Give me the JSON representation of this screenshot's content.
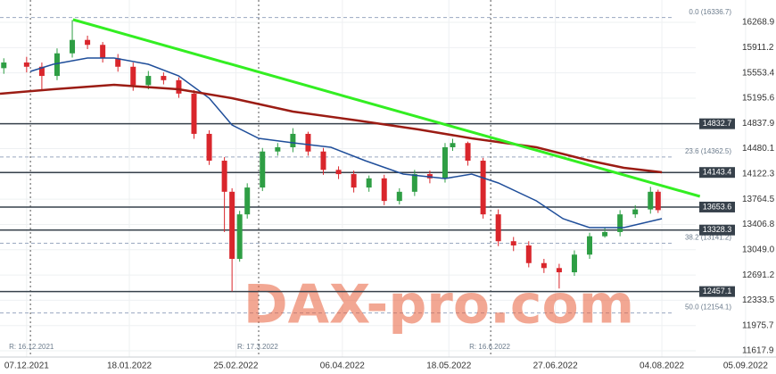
{
  "chart_data": {
    "type": "candlestick",
    "watermark": "DAX-pro.com",
    "xlim": [
      -7,
      197
    ],
    "ylim": [
      11530,
      16585
    ],
    "xticks": [
      {
        "value": 0,
        "label": "07.12.2021"
      },
      {
        "value": 27,
        "label": "18.01.2022"
      },
      {
        "value": 55,
        "label": "25.02.2022"
      },
      {
        "value": 83,
        "label": "06.04.2022"
      },
      {
        "value": 111,
        "label": "18.05.2022"
      },
      {
        "value": 139,
        "label": "27.06.2022"
      },
      {
        "value": 167,
        "label": "04.08.2022"
      },
      {
        "value": 189,
        "label": "05.09.2022"
      }
    ],
    "yticks": [
      16268.9,
      15911.2,
      15553.4,
      15195.6,
      14837.9,
      14480.1,
      14122.3,
      13764.5,
      13406.8,
      {
        "value": 13049,
        "label": "13049.0"
      },
      12691.2,
      12333.5,
      11975.7,
      11617.9
    ],
    "grid": true,
    "up_color": "#2e9e44",
    "down_color": "#d9262c",
    "candles": {
      "x": [
        -6,
        0,
        4,
        8,
        12,
        16,
        20,
        24,
        28,
        32,
        36,
        40,
        44,
        48,
        52,
        54,
        56,
        58,
        62,
        66,
        70,
        74,
        78,
        82,
        86,
        90,
        94,
        98,
        102,
        106,
        110,
        112,
        116,
        120,
        124,
        128,
        132,
        136,
        140,
        144,
        148,
        152,
        156,
        160,
        164,
        166
      ],
      "open": [
        15620,
        15700,
        15640,
        15510,
        15830,
        16020,
        15950,
        15760,
        15640,
        15380,
        15510,
        15450,
        15260,
        14690,
        14310,
        13870,
        12920,
        13550,
        13930,
        14440,
        14500,
        14690,
        14440,
        14180,
        14120,
        13930,
        14060,
        13740,
        13870,
        14120,
        14060,
        14500,
        14560,
        14310,
        13550,
        13170,
        13110,
        12860,
        12790,
        12730,
        12980,
        13240,
        13300,
        13550,
        13620,
        13870
      ],
      "high": [
        15760,
        15780,
        15700,
        15900,
        16300,
        16080,
        15990,
        15820,
        15700,
        15580,
        15560,
        15490,
        15310,
        14740,
        14360,
        13920,
        13600,
        13990,
        14490,
        14560,
        14770,
        14720,
        14490,
        14230,
        14170,
        14100,
        14110,
        13920,
        14180,
        14170,
        14560,
        14620,
        14580,
        14350,
        13620,
        13230,
        13170,
        12920,
        12850,
        13040,
        13290,
        13360,
        13610,
        13680,
        13940,
        13900
      ],
      "low": [
        15540,
        15560,
        15320,
        15450,
        15770,
        15890,
        15700,
        15570,
        15300,
        15320,
        15390,
        15200,
        14620,
        14250,
        13300,
        12460,
        12880,
        13490,
        13880,
        14380,
        14430,
        14380,
        14110,
        14050,
        13860,
        13870,
        13680,
        13690,
        13810,
        13990,
        14000,
        14450,
        14240,
        13490,
        13100,
        13030,
        12800,
        12720,
        12500,
        12680,
        12920,
        13220,
        13240,
        13500,
        13560,
        13570
      ],
      "close": [
        15700,
        15640,
        15510,
        15830,
        16020,
        15950,
        15760,
        15640,
        15380,
        15510,
        15450,
        15260,
        14690,
        14310,
        13870,
        12920,
        13550,
        13930,
        14440,
        14500,
        14690,
        14440,
        14180,
        14120,
        13930,
        14060,
        13740,
        13870,
        14120,
        14060,
        14500,
        14560,
        14310,
        13550,
        13170,
        13110,
        12860,
        12790,
        12730,
        12980,
        13240,
        13300,
        13550,
        13620,
        13870,
        13610
      ]
    },
    "lines": [
      {
        "color": "#1f4e9a",
        "width": 1.5,
        "x": [
          1,
          7,
          16,
          23,
          32,
          40,
          48,
          54,
          61,
          70,
          80,
          89,
          99,
          110,
          117,
          124,
          134,
          141,
          148,
          157,
          167
        ],
        "values": [
          15574,
          15675,
          15764,
          15764,
          15675,
          15511,
          15195,
          14816,
          14626,
          14563,
          14500,
          14310,
          14121,
          14057,
          14121,
          13994,
          13741,
          13489,
          13362,
          13362,
          13489
        ]
      },
      {
        "color": "#9b1c14",
        "width": 2.5,
        "x": [
          -7,
          7,
          23,
          40,
          54,
          70,
          87,
          103,
          117,
          134,
          148,
          157,
          167
        ],
        "values": [
          15258,
          15321,
          15384,
          15321,
          15195,
          15005,
          14879,
          14752,
          14626,
          14500,
          14310,
          14209,
          14146
        ]
      },
      {
        "color": "#33ee22",
        "width": 3,
        "x": [
          12.2,
          177
        ],
        "values": [
          16307,
          13805
        ]
      }
    ],
    "levels": [
      14832.7,
      14143.4,
      13653.6,
      13328.3,
      12457.1
    ],
    "level_color": "#37414b",
    "fib_levels": [
      {
        "value": 16336.7,
        "label": "0.0 (16336.7)"
      },
      {
        "value": 14362.5,
        "label": "23.6 (14362.5)"
      },
      {
        "value": 13141.2,
        "label": "38.2 (13141.2)"
      },
      {
        "value": 12154.1,
        "label": "50.0 (12154.1)"
      }
    ],
    "markers": [
      {
        "x": 1,
        "label": "R: 16.12.2021"
      },
      {
        "x": 61,
        "label": "R: 17.3.2022"
      },
      {
        "x": 122,
        "label": "R: 16.6.2022"
      }
    ]
  }
}
